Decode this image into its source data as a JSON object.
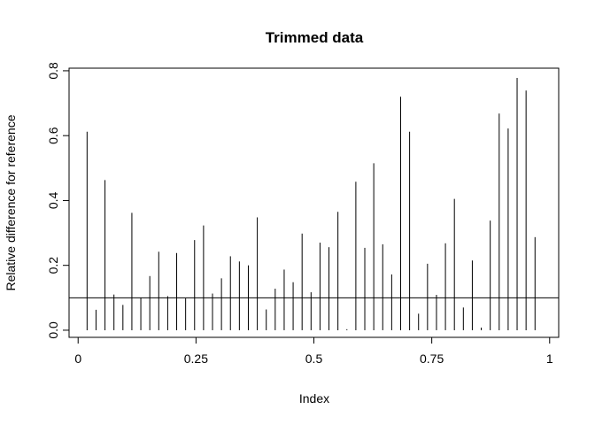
{
  "chart_data": {
    "type": "bar",
    "title": "Trimmed data",
    "xlabel": "Index",
    "ylabel": "Relative difference for reference",
    "xlim": [
      -0.0192,
      1.0192
    ],
    "ylim": [
      -0.022,
      0.808
    ],
    "x_ticks": [
      0,
      0.25,
      0.5,
      0.75,
      1
    ],
    "x_tick_labels": [
      "0",
      "0.25",
      "0.5",
      "0.75",
      "1"
    ],
    "y_ticks": [
      0,
      0.2,
      0.4,
      0.6,
      0.8
    ],
    "y_tick_labels": [
      "0.0",
      "0.2",
      "0.4",
      "0.6",
      "0.8"
    ],
    "grid": false,
    "reference_line_y": 0.1,
    "series": [
      {
        "x": [
          0.019,
          0.038,
          0.057,
          0.076,
          0.095,
          0.114,
          0.133,
          0.152,
          0.171,
          0.19,
          0.209,
          0.228,
          0.247,
          0.266,
          0.285,
          0.304,
          0.323,
          0.342,
          0.361,
          0.38,
          0.399,
          0.418,
          0.437,
          0.456,
          0.475,
          0.494,
          0.513,
          0.532,
          0.551,
          0.57,
          0.589,
          0.608,
          0.627,
          0.646,
          0.665,
          0.684,
          0.703,
          0.722,
          0.741,
          0.76,
          0.779,
          0.798,
          0.817,
          0.836,
          0.855,
          0.874,
          0.893,
          0.912,
          0.931,
          0.95,
          0.969
        ],
        "values": [
          0.612,
          0.063,
          0.463,
          0.11,
          0.078,
          0.362,
          0.1,
          0.167,
          0.242,
          0.105,
          0.238,
          0.098,
          0.278,
          0.323,
          0.113,
          0.16,
          0.228,
          0.212,
          0.2,
          0.348,
          0.064,
          0.128,
          0.187,
          0.148,
          0.298,
          0.117,
          0.27,
          0.256,
          0.365,
          0.003,
          0.458,
          0.254,
          0.515,
          0.265,
          0.172,
          0.72,
          0.612,
          0.051,
          0.205,
          0.109,
          0.268,
          0.405,
          0.07,
          0.215,
          0.008,
          0.338,
          0.668,
          0.622,
          0.778,
          0.739,
          0.287
        ]
      }
    ]
  }
}
